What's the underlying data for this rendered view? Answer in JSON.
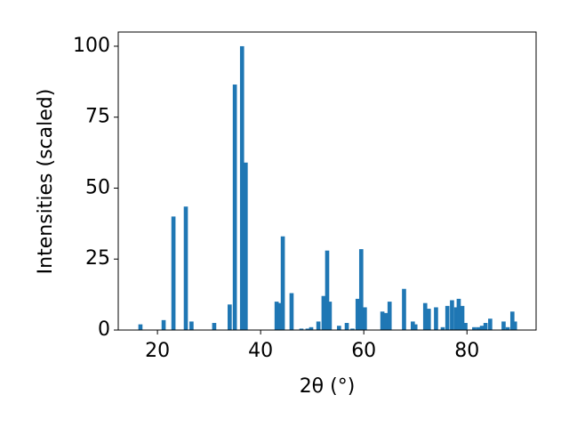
{
  "chart_data": {
    "type": "bar",
    "xlabel": "2θ (°)",
    "ylabel": "Intensities (scaled)",
    "color": "#1f77b4",
    "x": [
      16.7,
      21.2,
      23.1,
      25.5,
      26.6,
      31.0,
      34.0,
      35.0,
      36.4,
      37.1,
      43.1,
      43.8,
      44.3,
      46.0,
      47.9,
      49.1,
      49.8,
      51.2,
      52.2,
      52.9,
      53.4,
      55.2,
      56.7,
      57.8,
      58.8,
      59.5,
      60.2,
      63.6,
      64.3,
      65.0,
      67.8,
      69.5,
      70.0,
      71.9,
      72.6,
      74.0,
      75.3,
      76.2,
      77.1,
      77.9,
      78.4,
      79.1,
      79.7,
      81.4,
      82.2,
      82.9,
      83.6,
      84.5,
      87.1,
      87.9,
      88.8,
      89.3
    ],
    "values": [
      2,
      3.5,
      40,
      43.5,
      3,
      2.5,
      9,
      86.5,
      100,
      59,
      10,
      9.5,
      33,
      13,
      0.5,
      0.5,
      1,
      3,
      12,
      28,
      10,
      1.5,
      2.5,
      0.5,
      11,
      28.5,
      8,
      6.5,
      6,
      10,
      14.5,
      3,
      2,
      9.5,
      7.5,
      8,
      1,
      8.5,
      10.5,
      8,
      11,
      8.5,
      2.5,
      1,
      1,
      1.5,
      2.5,
      4,
      3,
      1,
      6.5,
      3
    ],
    "xlim": [
      12.4,
      93.4
    ],
    "xticks": [
      20,
      40,
      60,
      80
    ],
    "ylim": [
      0,
      105
    ],
    "yticks": [
      0,
      25,
      50,
      75,
      100
    ]
  }
}
